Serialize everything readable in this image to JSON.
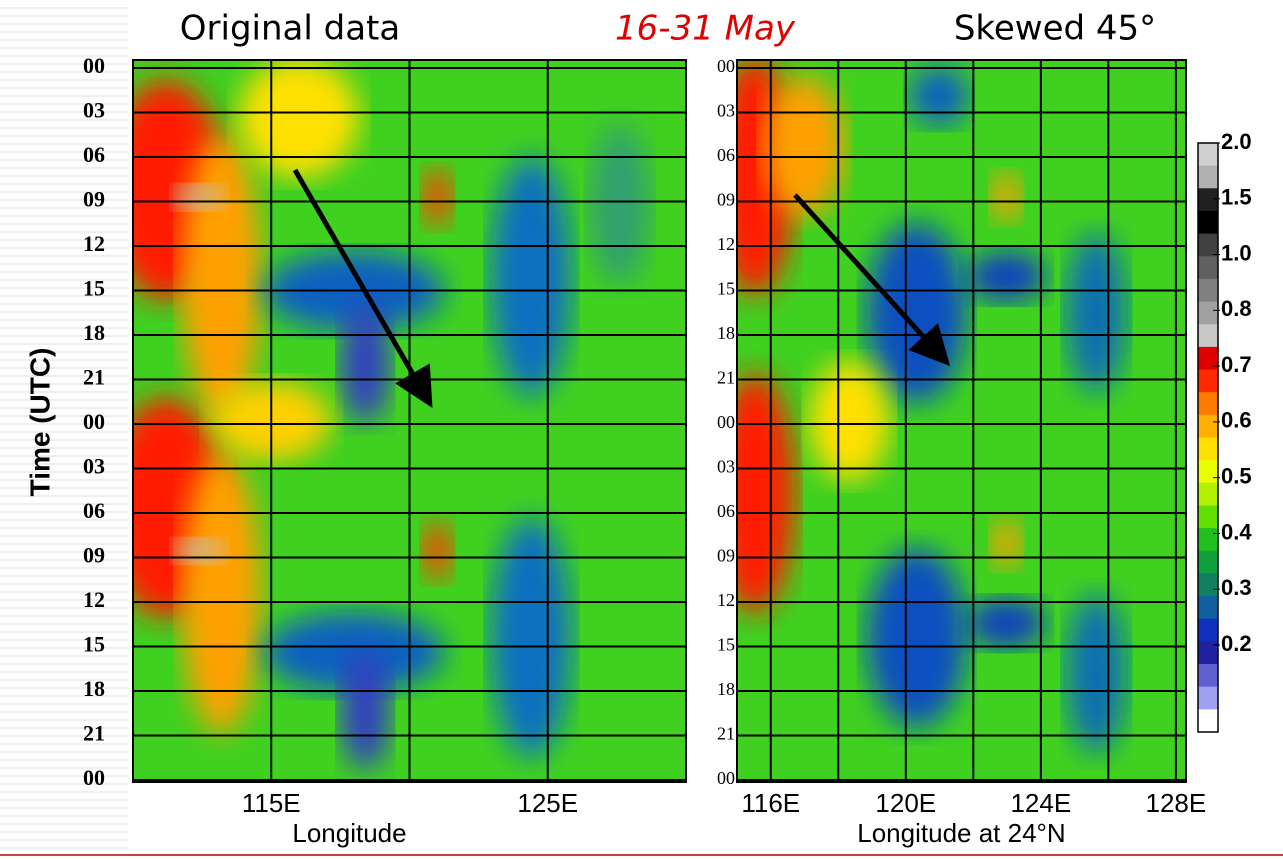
{
  "title_left": "Original data",
  "title_center": "16-31 May",
  "title_right": "Skewed 45°",
  "chart_data": [
    {
      "type": "heatmap",
      "ylabel": "Time (UTC)",
      "xlabel": "Longitude",
      "ycategories": [
        "00",
        "03",
        "06",
        "09",
        "12",
        "15",
        "18",
        "21",
        "00",
        "03",
        "06",
        "09",
        "12",
        "15",
        "18",
        "21",
        "00"
      ],
      "xlim": [
        110,
        130
      ],
      "xticks": [
        {
          "value": 115,
          "label": "115E"
        },
        {
          "value": 125,
          "label": "125E"
        }
      ],
      "xgrid": [
        115,
        120,
        125
      ]
    },
    {
      "type": "heatmap",
      "xlabel": "Longitude at 24°N",
      "ycategories": [
        "00",
        "03",
        "06",
        "09",
        "12",
        "15",
        "18",
        "21",
        "00",
        "03",
        "06",
        "09",
        "12",
        "15",
        "18",
        "21",
        "00"
      ],
      "xlim": [
        115,
        128.3
      ],
      "xticks": [
        {
          "value": 116,
          "label": "116E"
        },
        {
          "value": 120,
          "label": "120E"
        },
        {
          "value": 124,
          "label": "124E"
        },
        {
          "value": 128,
          "label": "128E"
        }
      ],
      "xgrid": [
        116,
        118,
        120,
        122,
        124,
        126,
        128
      ]
    }
  ],
  "colorbar": {
    "ticks": [
      {
        "value": 2,
        "label": "2.0"
      },
      {
        "value": 1.5,
        "label": "1.5"
      },
      {
        "value": 1,
        "label": "1.0"
      },
      {
        "value": 0.8,
        "label": "0.8"
      },
      {
        "value": 0.7,
        "label": "0.7"
      },
      {
        "value": 0.6,
        "label": "0.6"
      },
      {
        "value": 0.5,
        "label": "0.5"
      },
      {
        "value": 0.4,
        "label": "0.4"
      },
      {
        "value": 0.3,
        "label": "0.3"
      },
      {
        "value": 0.2,
        "label": "0.2"
      }
    ],
    "colors": [
      "#d0d0d0",
      "#b0b0b0",
      "#202020",
      "#000000",
      "#404040",
      "#606060",
      "#808080",
      "#a0a0a0",
      "#c8c8c8",
      "#e00000",
      "#ff2a00",
      "#ff7a00",
      "#ffb000",
      "#ffe000",
      "#e8ff00",
      "#b0f000",
      "#60e000",
      "#20c020",
      "#10a040",
      "#108060",
      "#1060a0",
      "#1030c0",
      "#2020a0",
      "#6060d0",
      "#a0a0f0",
      "#ffffff"
    ]
  }
}
